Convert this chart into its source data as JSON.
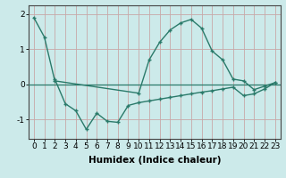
{
  "line1_x": [
    0,
    1,
    2,
    10,
    11,
    12,
    13,
    14,
    15,
    16,
    17,
    18,
    19,
    20,
    21,
    22,
    23
  ],
  "line1_y": [
    1.9,
    1.35,
    0.1,
    -0.25,
    0.7,
    1.2,
    1.55,
    1.75,
    1.85,
    1.6,
    0.95,
    0.7,
    0.15,
    0.1,
    -0.15,
    -0.05,
    0.05
  ],
  "line2_x": [
    2,
    3,
    4,
    5,
    6,
    7,
    8,
    9,
    10,
    11,
    12,
    13,
    14,
    15,
    16,
    17,
    18,
    19,
    20,
    21,
    22,
    23
  ],
  "line2_y": [
    0.15,
    -0.55,
    -0.75,
    -1.28,
    -0.82,
    -1.05,
    -1.08,
    -0.6,
    -0.52,
    -0.47,
    -0.42,
    -0.37,
    -0.32,
    -0.27,
    -0.22,
    -0.18,
    -0.13,
    -0.08,
    -0.32,
    -0.27,
    -0.13,
    0.05
  ],
  "hline_x": [
    2,
    23
  ],
  "hline_y": [
    0.15,
    0.15
  ],
  "line_color": "#2a7a6a",
  "bg_color": "#cceaea",
  "grid_color": "#c8a8a8",
  "xlabel": "Humidex (Indice chaleur)",
  "xlim": [
    -0.5,
    23.5
  ],
  "ylim": [
    -1.55,
    2.25
  ],
  "yticks": [
    -1,
    0,
    1,
    2
  ],
  "xticks": [
    0,
    1,
    2,
    3,
    4,
    5,
    6,
    7,
    8,
    9,
    10,
    11,
    12,
    13,
    14,
    15,
    16,
    17,
    18,
    19,
    20,
    21,
    22,
    23
  ],
  "xlabel_fontsize": 7.5,
  "tick_fontsize": 6.5,
  "marker": "+"
}
